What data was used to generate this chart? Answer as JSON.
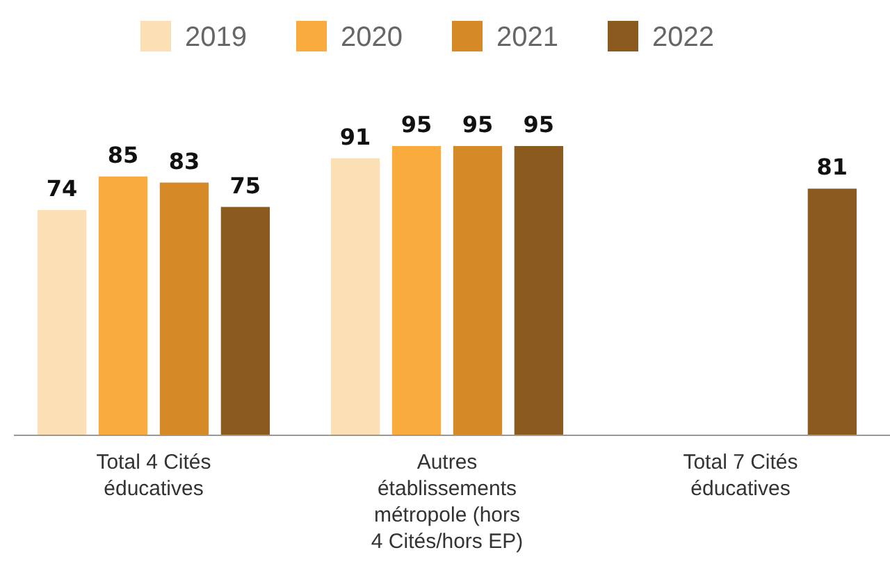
{
  "chart_data": {
    "type": "bar",
    "categories": [
      "Total 4 Cités éducatives",
      "Autres établissements métropole (hors 4 Cités/hors EP)",
      "Total 7 Cités éducatives"
    ],
    "series": [
      {
        "name": "2019",
        "color": "#fbe0b5",
        "values": [
          74,
          91,
          null
        ]
      },
      {
        "name": "2020",
        "color": "#f9ab3e",
        "values": [
          85,
          95,
          null
        ]
      },
      {
        "name": "2021",
        "color": "#d68a27",
        "values": [
          83,
          95,
          null
        ]
      },
      {
        "name": "2022",
        "color": "#8a5a1e",
        "values": [
          75,
          95,
          81
        ]
      }
    ],
    "tick_labels": "x",
    "data_labels": true,
    "legend": "top"
  }
}
